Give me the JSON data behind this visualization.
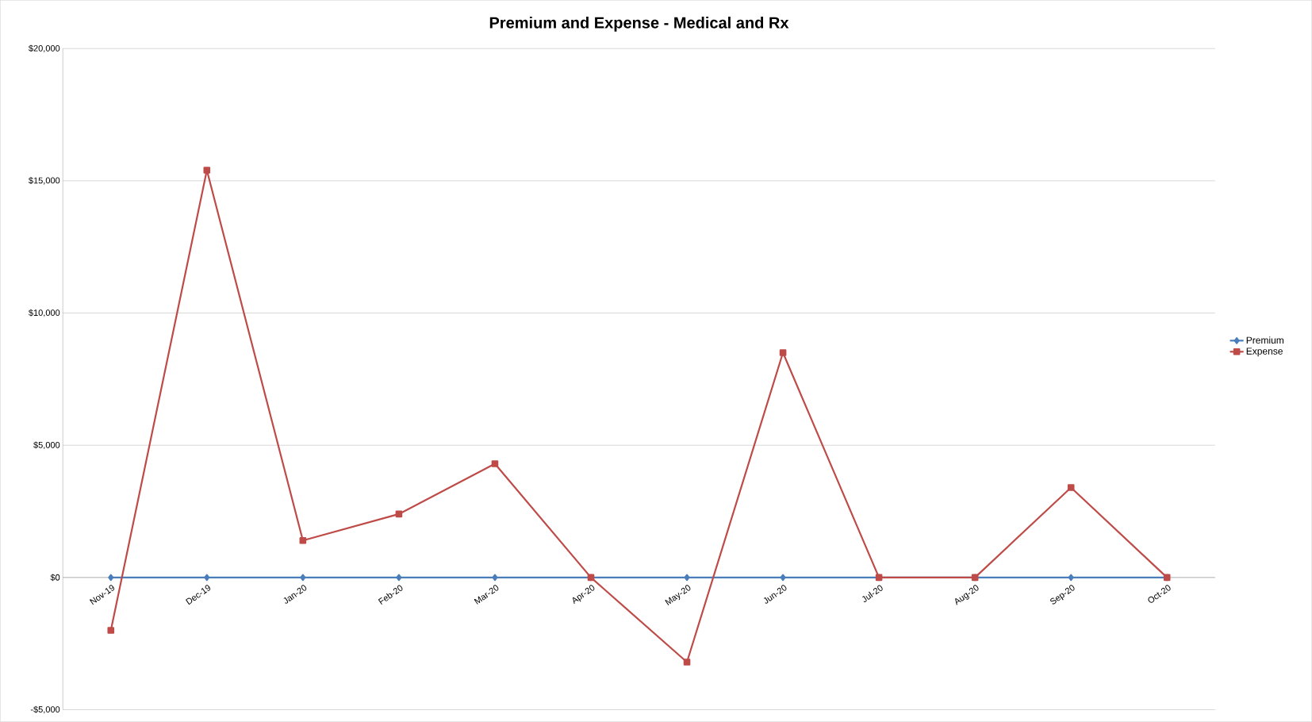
{
  "chart_data": {
    "type": "line",
    "title": "Premium and Expense - Medical and Rx",
    "categories": [
      "Nov-19",
      "Dec-19",
      "Jan-20",
      "Feb-20",
      "Mar-20",
      "Apr-20",
      "May-20",
      "Jun-20",
      "Jul-20",
      "Aug-20",
      "Sep-20",
      "Oct-20"
    ],
    "series": [
      {
        "name": "Premium",
        "color": "#4a7ebb",
        "marker": "diamond",
        "values": [
          0,
          0,
          0,
          0,
          0,
          0,
          0,
          0,
          0,
          0,
          0,
          0
        ]
      },
      {
        "name": "Expense",
        "color": "#be4b48",
        "marker": "square",
        "values": [
          -2000,
          15400,
          1400,
          2400,
          4300,
          0,
          -3200,
          8500,
          0,
          0,
          3400,
          0
        ]
      }
    ],
    "ylim": [
      -5000,
      20000
    ],
    "yticks": [
      {
        "value": -5000,
        "label": "-$5,000"
      },
      {
        "value": 0,
        "label": "$0"
      },
      {
        "value": 5000,
        "label": "$5,000"
      },
      {
        "value": 10000,
        "label": "$10,000"
      },
      {
        "value": 15000,
        "label": "$15,000"
      },
      {
        "value": 20000,
        "label": "$20,000"
      }
    ],
    "grid": "y",
    "legend": "right",
    "line_style": "solid"
  }
}
